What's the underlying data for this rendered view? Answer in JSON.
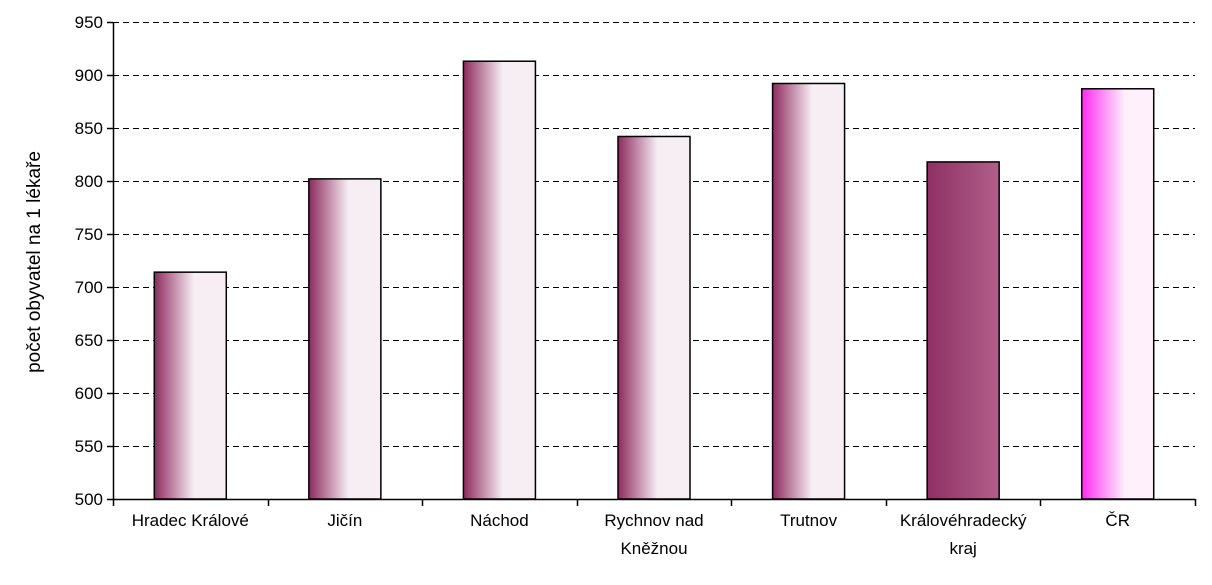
{
  "chart_data": {
    "type": "bar",
    "categories": [
      [
        "Hradec Králové"
      ],
      [
        "Jičín"
      ],
      [
        "Náchod"
      ],
      [
        "Rychnov nad",
        "Kněžnou"
      ],
      [
        "Trutnov"
      ],
      [
        "Královéhradecký",
        "kraj"
      ],
      [
        "ČR"
      ]
    ],
    "values": [
      714,
      802,
      913,
      842,
      892,
      818,
      887
    ],
    "bar_styles": [
      "gradient",
      "gradient",
      "gradient",
      "gradient",
      "gradient",
      "solid",
      "highlight"
    ],
    "ylabel": "počet obyvatel na 1 lékaře",
    "ylim": [
      500,
      950
    ],
    "yticks": [
      500,
      550,
      600,
      650,
      700,
      750,
      800,
      850,
      900,
      950
    ],
    "grid": true,
    "colors": {
      "bar_dark": "#8e2a5e",
      "bar_light": "#f7eef4",
      "bar_solid_left": "#8f2f63",
      "bar_solid_right": "#b0608a",
      "highlight_left": "#ff2cf0",
      "highlight_right": "#fff0fc",
      "axis": "#000000",
      "grid": "#000000"
    }
  }
}
